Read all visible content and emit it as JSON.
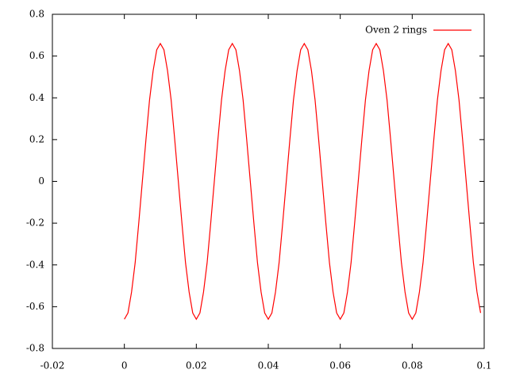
{
  "chart_data": {
    "type": "line",
    "x": [
      0,
      0.001,
      0.002,
      0.003,
      0.004,
      0.005,
      0.006,
      0.007,
      0.008,
      0.009,
      0.01,
      0.011,
      0.012,
      0.013,
      0.014,
      0.015,
      0.016,
      0.017,
      0.018,
      0.019,
      0.02,
      0.021,
      0.022,
      0.023,
      0.024,
      0.025,
      0.026,
      0.027,
      0.028,
      0.029,
      0.03,
      0.031,
      0.032,
      0.033,
      0.034,
      0.035,
      0.036,
      0.037,
      0.038,
      0.039,
      0.04,
      0.041,
      0.042,
      0.043,
      0.044,
      0.045,
      0.046,
      0.047,
      0.048,
      0.049,
      0.05,
      0.051,
      0.052,
      0.053,
      0.054,
      0.055,
      0.056,
      0.057,
      0.058,
      0.059,
      0.06,
      0.061,
      0.062,
      0.063,
      0.064,
      0.065,
      0.066,
      0.067,
      0.068,
      0.069,
      0.07,
      0.071,
      0.072,
      0.073,
      0.074,
      0.075,
      0.076,
      0.077,
      0.078,
      0.079,
      0.08,
      0.081,
      0.082,
      0.083,
      0.084,
      0.085,
      0.086,
      0.087,
      0.088,
      0.089,
      0.09,
      0.091,
      0.092,
      0.093,
      0.094,
      0.095,
      0.096,
      0.097,
      0.098,
      0.099
    ],
    "series": [
      {
        "name": "Oven 2 rings",
        "color": "#ff0000",
        "values": [
          -0.66,
          -0.63,
          -0.53,
          -0.39,
          -0.2,
          0,
          0.2,
          0.39,
          0.53,
          0.63,
          0.66,
          0.63,
          0.53,
          0.39,
          0.2,
          0,
          -0.2,
          -0.39,
          -0.53,
          -0.63,
          -0.66,
          -0.63,
          -0.53,
          -0.39,
          -0.2,
          0,
          0.2,
          0.39,
          0.53,
          0.63,
          0.66,
          0.63,
          0.53,
          0.39,
          0.2,
          0,
          -0.2,
          -0.39,
          -0.53,
          -0.63,
          -0.66,
          -0.63,
          -0.53,
          -0.39,
          -0.2,
          0,
          0.2,
          0.39,
          0.53,
          0.63,
          0.66,
          0.63,
          0.53,
          0.39,
          0.2,
          0,
          -0.2,
          -0.39,
          -0.53,
          -0.63,
          -0.66,
          -0.63,
          -0.53,
          -0.39,
          -0.2,
          0,
          0.2,
          0.39,
          0.53,
          0.63,
          0.66,
          0.63,
          0.53,
          0.39,
          0.2,
          0,
          -0.2,
          -0.39,
          -0.53,
          -0.63,
          -0.66,
          -0.63,
          -0.53,
          -0.39,
          -0.2,
          0,
          0.2,
          0.39,
          0.53,
          0.63,
          0.66,
          0.63,
          0.53,
          0.39,
          0.2,
          0,
          -0.2,
          -0.39,
          -0.53,
          -0.63
        ]
      }
    ],
    "xlim": [
      -0.02,
      0.1
    ],
    "xticks": [
      -0.02,
      0,
      0.02,
      0.04,
      0.06,
      0.08,
      0.1
    ],
    "ylim": [
      -0.8,
      0.8
    ],
    "yticks": [
      -0.8,
      -0.6,
      -0.4,
      -0.2,
      0,
      0.2,
      0.4,
      0.6,
      0.8
    ],
    "grid": false,
    "legend": "top-right"
  }
}
